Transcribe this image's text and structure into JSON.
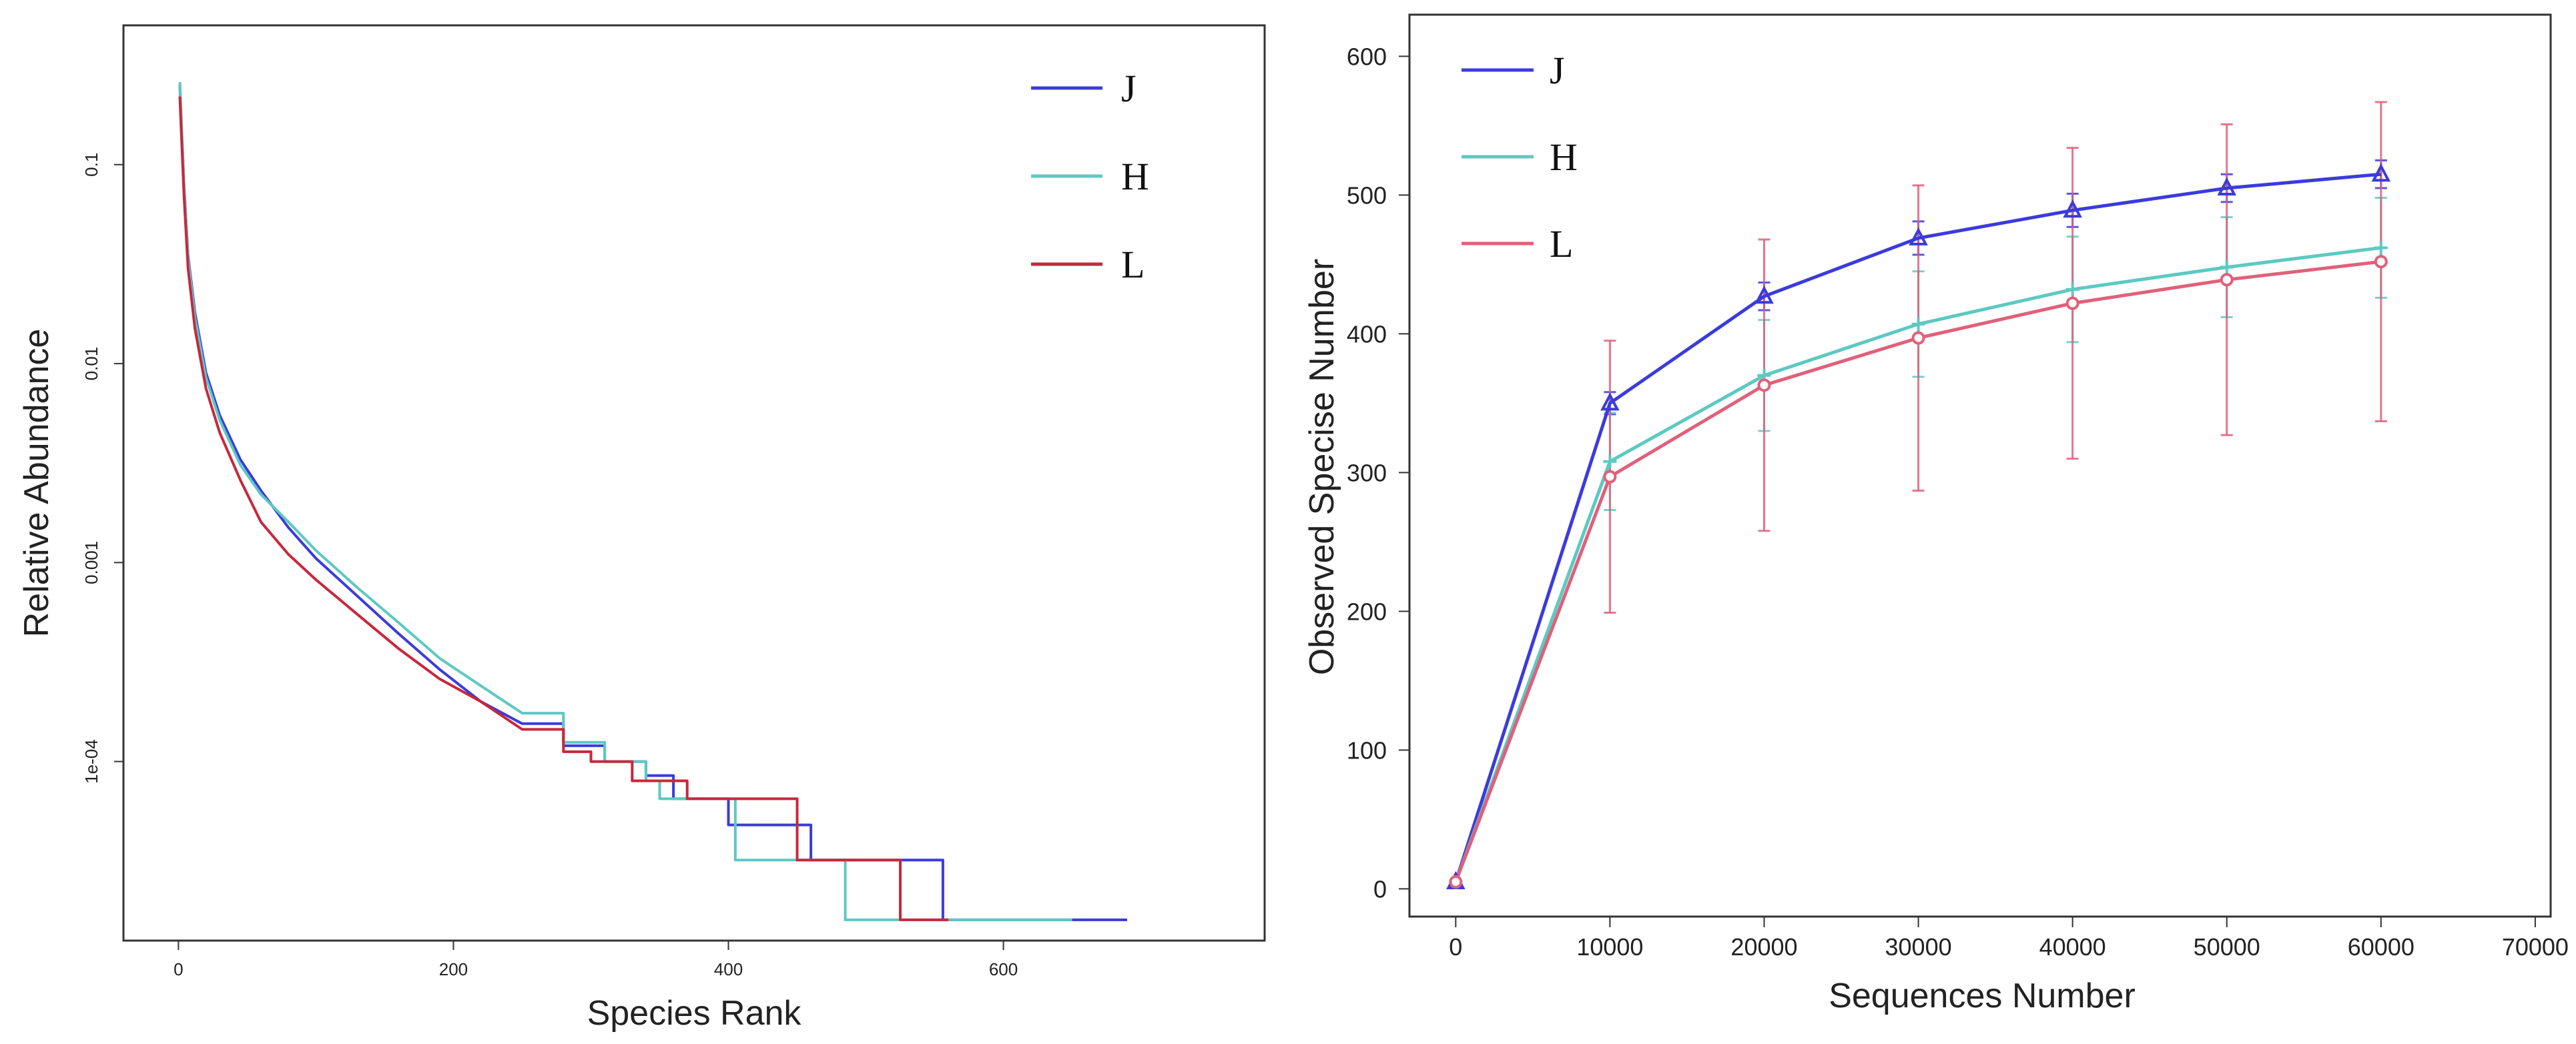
{
  "chart_data": [
    {
      "type": "line",
      "id": "rank_abundance",
      "scale_y": "log",
      "xlabel": "Species Rank",
      "ylabel": "Relative Abundance",
      "xlim": [
        -40,
        790
      ],
      "ylim_log10": [
        -4.9,
        -0.3
      ],
      "xticks": [
        0,
        200,
        400,
        600
      ],
      "xtick_labels": [
        "0",
        "200",
        "400",
        "600"
      ],
      "yticks": [
        0.1,
        0.01,
        0.001,
        0.0001
      ],
      "ytick_labels": [
        "0.1",
        "0.01",
        "0.001",
        "1e-04"
      ],
      "legend_position": "top-right",
      "series": [
        {
          "name": "J",
          "color": "#3b3bdc",
          "x": [
            1,
            2,
            4,
            7,
            12,
            20,
            30,
            45,
            60,
            80,
            100,
            130,
            160,
            190,
            220,
            250,
            280,
            310,
            340,
            360,
            400,
            460,
            556,
            690
          ],
          "y": [
            0.25,
            0.17,
            0.08,
            0.035,
            0.018,
            0.009,
            0.0055,
            0.0033,
            0.0023,
            0.0015,
            0.00105,
            0.00068,
            0.00044,
            0.00029,
            0.0002,
            0.000155,
            0.00012,
            0.0001,
            8.5e-05,
            6.5e-05,
            4.8e-05,
            3.2e-05,
            1.6e-05,
            1.6e-05
          ]
        },
        {
          "name": "H",
          "color": "#5cc9c2",
          "x": [
            1,
            2,
            4,
            7,
            12,
            20,
            30,
            45,
            60,
            80,
            100,
            130,
            160,
            190,
            220,
            250,
            280,
            310,
            340,
            350,
            405,
            485,
            650
          ],
          "y": [
            0.26,
            0.18,
            0.08,
            0.034,
            0.017,
            0.0085,
            0.0052,
            0.0031,
            0.0022,
            0.0016,
            0.00115,
            0.00075,
            0.0005,
            0.00033,
            0.00024,
            0.000175,
            0.000125,
            0.0001,
            8e-05,
            6.5e-05,
            3.2e-05,
            1.6e-05,
            1.6e-05
          ]
        },
        {
          "name": "L",
          "color": "#c8283c",
          "x": [
            1,
            2,
            4,
            7,
            12,
            20,
            30,
            45,
            60,
            80,
            100,
            130,
            160,
            190,
            220,
            250,
            280,
            300,
            330,
            370,
            450,
            525,
            560
          ],
          "y": [
            0.22,
            0.15,
            0.07,
            0.03,
            0.015,
            0.0075,
            0.0045,
            0.0026,
            0.0016,
            0.0011,
            0.00082,
            0.00055,
            0.00037,
            0.00026,
            0.0002,
            0.000145,
            0.000112,
            0.0001,
            8e-05,
            6.5e-05,
            3.2e-05,
            1.6e-05,
            1.6e-05
          ]
        }
      ]
    },
    {
      "type": "line",
      "id": "rarefaction",
      "xlabel": "Sequences Number",
      "ylabel": "Observed Specise Number",
      "xlim": [
        -3000,
        71000
      ],
      "ylim": [
        -20,
        630
      ],
      "xticks": [
        0,
        10000,
        20000,
        30000,
        40000,
        50000,
        60000,
        70000
      ],
      "xtick_labels": [
        "0",
        "10000",
        "20000",
        "30000",
        "40000",
        "50000",
        "60000",
        "70000"
      ],
      "yticks": [
        0,
        100,
        200,
        300,
        400,
        500,
        600
      ],
      "ytick_labels": [
        "0",
        "100",
        "200",
        "300",
        "400",
        "500",
        "600"
      ],
      "legend_position": "top-left",
      "x": [
        0,
        10000,
        20000,
        30000,
        40000,
        50000,
        60000
      ],
      "series": [
        {
          "name": "J",
          "color": "#3b3bdc",
          "marker": "triangle",
          "values": [
            5,
            350,
            427,
            469,
            489,
            505,
            515
          ],
          "error": [
            0,
            8,
            10,
            12,
            12,
            10,
            10
          ]
        },
        {
          "name": "H",
          "color": "#5cc9c2",
          "marker": "plus",
          "values": [
            5,
            308,
            370,
            407,
            432,
            448,
            462
          ],
          "error": [
            0,
            35,
            40,
            38,
            38,
            36,
            36
          ]
        },
        {
          "name": "L",
          "color": "#e0607a",
          "marker": "circle",
          "values": [
            5,
            297,
            363,
            397,
            422,
            439,
            452
          ],
          "error": [
            0,
            98,
            105,
            110,
            112,
            112,
            115
          ]
        }
      ]
    }
  ]
}
